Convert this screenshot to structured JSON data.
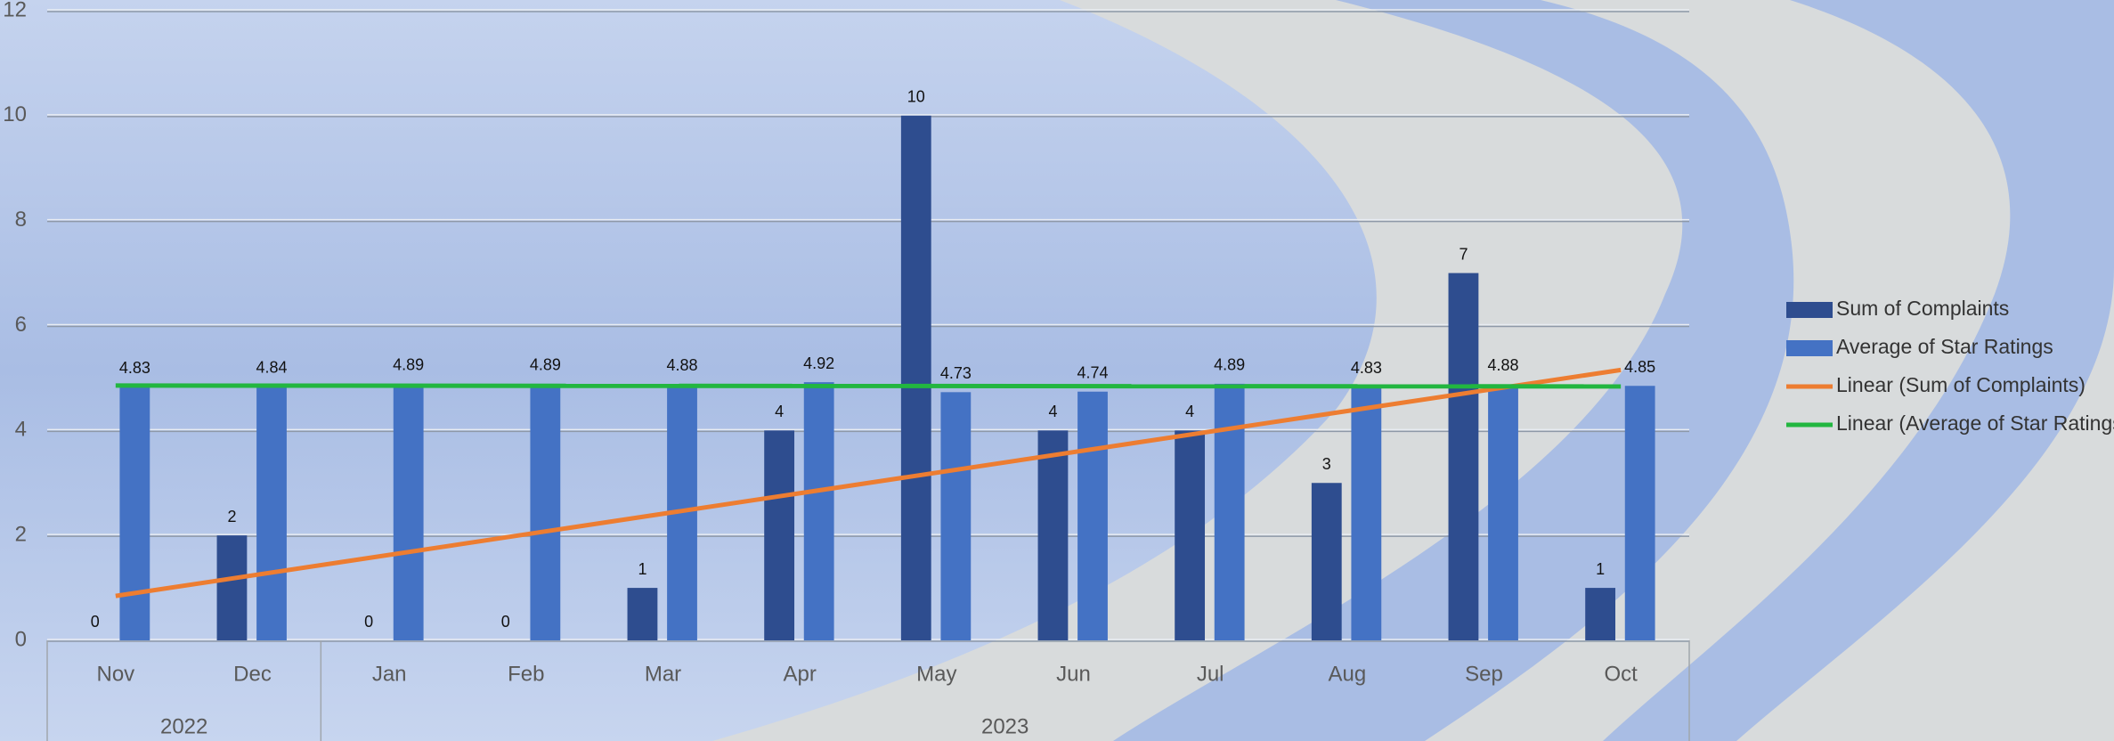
{
  "chart_data": {
    "type": "bar",
    "categories": [
      "Nov",
      "Dec",
      "Jan",
      "Feb",
      "Mar",
      "Apr",
      "May",
      "Jun",
      "Jul",
      "Aug",
      "Sep",
      "Oct"
    ],
    "years": [
      "2022",
      "2022",
      "2023",
      "2023",
      "2023",
      "2023",
      "2023",
      "2023",
      "2023",
      "2023",
      "2023",
      "2023"
    ],
    "series": [
      {
        "name": "Sum of Complaints",
        "color": "#2e4d8f",
        "values": [
          0,
          2,
          0,
          0,
          1,
          4,
          10,
          4,
          4,
          3,
          7,
          1
        ]
      },
      {
        "name": "Average of Star Ratings",
        "color": "#4472c4",
        "values": [
          4.83,
          4.84,
          4.89,
          4.89,
          4.88,
          4.92,
          4.73,
          4.74,
          4.89,
          4.83,
          4.88,
          4.85
        ]
      }
    ],
    "trendlines": [
      {
        "name": "Linear (Sum of Complaints)",
        "series": 0,
        "color": "#ed7d31"
      },
      {
        "name": "Linear (Average of Star Ratings)",
        "series": 1,
        "color": "#22b640"
      }
    ],
    "ylim": [
      0,
      12
    ],
    "yticks": [
      0,
      2,
      4,
      6,
      8,
      10,
      12
    ],
    "grid": true,
    "legend": "right"
  }
}
